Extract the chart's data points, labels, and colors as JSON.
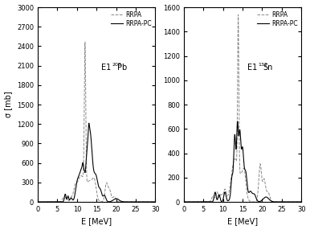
{
  "panel1": {
    "label": "E1",
    "superscript": "208",
    "element": "Pb",
    "ylim": [
      0,
      3000
    ],
    "yticks": [
      0,
      300,
      600,
      900,
      1200,
      1500,
      1800,
      2100,
      2400,
      2700,
      3000
    ],
    "xlim": [
      0,
      30
    ],
    "xticks": [
      0,
      5,
      10,
      15,
      20,
      25,
      30
    ]
  },
  "panel2": {
    "label": "E1",
    "superscript": "132",
    "element": "Sn",
    "ylim": [
      0,
      1600
    ],
    "yticks": [
      0,
      200,
      400,
      600,
      800,
      1000,
      1200,
      1400,
      1600
    ],
    "xlim": [
      0,
      30
    ],
    "xticks": [
      0,
      5,
      10,
      15,
      20,
      25,
      30
    ]
  },
  "legend_labels": [
    "RRPA",
    "RRPA-PC"
  ],
  "xlabel": "E [MeV]",
  "ylabel": "σ [mb]",
  "dashed_color": "#888888",
  "solid_color": "#000000",
  "background_color": "#ffffff"
}
